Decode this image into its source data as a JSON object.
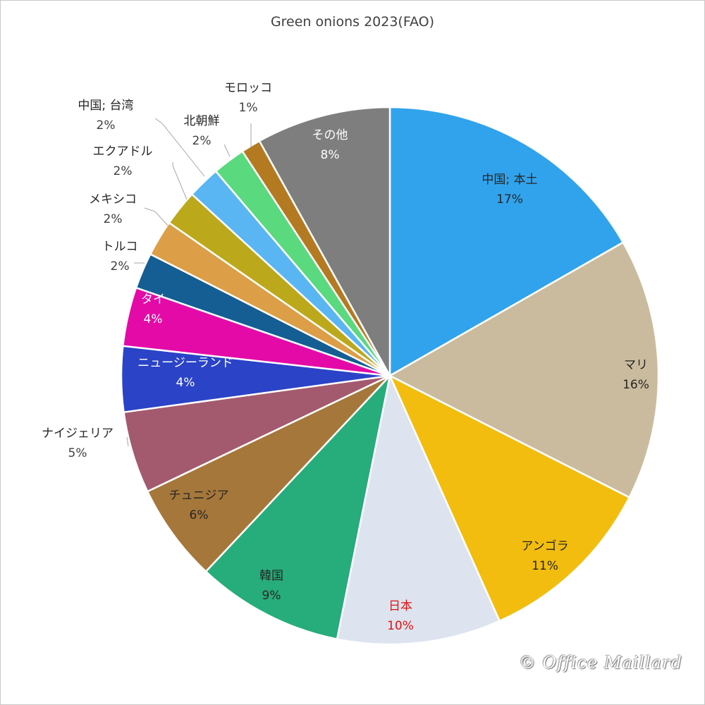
{
  "chart_data": {
    "type": "pie",
    "title": "Green onions 2023(FAO)",
    "slices": [
      {
        "name": "中国; 本土",
        "pct_label": "17%",
        "value": 17,
        "color": "#31a3ec",
        "label_style": "inside-dark"
      },
      {
        "name": "マリ",
        "pct_label": "16%",
        "value": 16,
        "color": "#cbbb9e",
        "label_style": "inside-dark"
      },
      {
        "name": "アンゴラ",
        "pct_label": "11%",
        "value": 11,
        "color": "#f2bd0e",
        "label_style": "inside-dark"
      },
      {
        "name": "日本",
        "pct_label": "10%",
        "value": 10,
        "color": "#dde3ef",
        "label_style": "inside-red"
      },
      {
        "name": "韓国",
        "pct_label": "9%",
        "value": 9,
        "color": "#27ac7b",
        "label_style": "inside-dark"
      },
      {
        "name": "チュニジア",
        "pct_label": "6%",
        "value": 6,
        "color": "#a5773a",
        "label_style": "inside-dark"
      },
      {
        "name": "ナイジェリア",
        "pct_label": "5%",
        "value": 5,
        "color": "#a45a6e",
        "label_style": "outside"
      },
      {
        "name": "ニュージーランド",
        "pct_label": "4%",
        "value": 4,
        "color": "#2b43c7",
        "label_style": "inside-white"
      },
      {
        "name": "タイ",
        "pct_label": "4%",
        "value": 3.6,
        "color": "#e40aa7",
        "label_style": "inside-white"
      },
      {
        "name": "トルコ",
        "pct_label": "2%",
        "value": 2.2,
        "color": "#145e93",
        "label_style": "outside"
      },
      {
        "name": "メキシコ",
        "pct_label": "2%",
        "value": 2.2,
        "color": "#dc9e47",
        "label_style": "outside"
      },
      {
        "name": "エクアドル",
        "pct_label": "2%",
        "value": 2.2,
        "color": "#bca91b",
        "label_style": "outside"
      },
      {
        "name": "中国; 台湾",
        "pct_label": "2%",
        "value": 2.0,
        "color": "#5ab6f2",
        "label_style": "outside"
      },
      {
        "name": "北朝鮮",
        "pct_label": "2%",
        "value": 2.0,
        "color": "#5ad97f",
        "label_style": "outside"
      },
      {
        "name": "モロッコ",
        "pct_label": "1%",
        "value": 1.2,
        "color": "#b47a22",
        "label_style": "outside"
      },
      {
        "name": "その他",
        "pct_label": "8%",
        "value": 8.2,
        "color": "#7e7e7e",
        "label_style": "inside-white"
      }
    ],
    "start": "12 o'clock",
    "direction": "clockwise",
    "legend": "none"
  },
  "watermark": "© Office Maillard"
}
